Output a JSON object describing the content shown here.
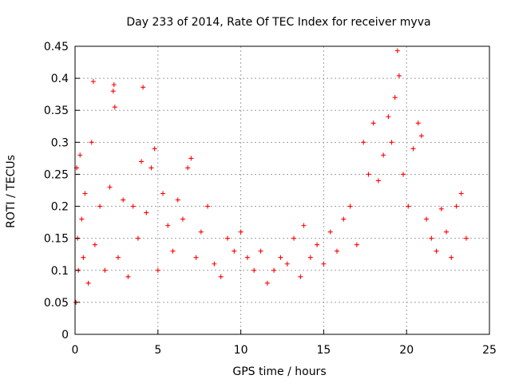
{
  "chart_data": {
    "type": "scatter",
    "title": "Day 233 of 2014, Rate Of TEC Index for receiver myva",
    "xlabel": "GPS time / hours",
    "ylabel": "ROTI / TECUs",
    "xlim": [
      0,
      25
    ],
    "ylim": [
      0,
      0.45
    ],
    "xticks": [
      "0",
      "5",
      "10",
      "15",
      "20",
      "25"
    ],
    "yticks": [
      "0",
      "0.05",
      "0.1",
      "0.15",
      "0.2",
      "0.25",
      "0.3",
      "0.35",
      "0.4",
      "0.45"
    ],
    "grid": true,
    "marker": "+",
    "color": "#ff0000",
    "series": [
      {
        "x": [
          0.05,
          0.1,
          0.15,
          0.2,
          0.3,
          0.4,
          0.5,
          0.6,
          0.8,
          1.0,
          1.1,
          1.2,
          1.5,
          1.8,
          2.1,
          2.3,
          2.35,
          2.4,
          2.6,
          2.9,
          3.2,
          3.5,
          3.8,
          4.0,
          4.1,
          4.3,
          4.6,
          4.8,
          5.0,
          5.3,
          5.6,
          5.9,
          6.2,
          6.5,
          6.8,
          7.0,
          7.3,
          7.6,
          8.0,
          8.4,
          8.8,
          9.2,
          9.6,
          10.0,
          10.4,
          10.8,
          11.2,
          11.6,
          12.0,
          12.4,
          12.8,
          13.2,
          13.6,
          13.8,
          14.2,
          14.6,
          15.0,
          15.4,
          15.8,
          16.2,
          16.6,
          17.0,
          17.4,
          17.7,
          18.0,
          18.3,
          18.6,
          18.9,
          19.1,
          19.3,
          19.45,
          19.55,
          19.8,
          20.1,
          20.4,
          20.7,
          20.9,
          21.2,
          21.5,
          21.8,
          22.1,
          22.4,
          22.7,
          23.0,
          23.3,
          23.6
        ],
        "y": [
          0.05,
          0.26,
          0.15,
          0.1,
          0.28,
          0.18,
          0.12,
          0.22,
          0.08,
          0.3,
          0.395,
          0.14,
          0.2,
          0.1,
          0.23,
          0.38,
          0.39,
          0.355,
          0.12,
          0.21,
          0.09,
          0.2,
          0.15,
          0.27,
          0.386,
          0.19,
          0.26,
          0.29,
          0.1,
          0.22,
          0.17,
          0.13,
          0.21,
          0.18,
          0.26,
          0.275,
          0.12,
          0.16,
          0.2,
          0.11,
          0.09,
          0.15,
          0.13,
          0.16,
          0.12,
          0.1,
          0.13,
          0.08,
          0.1,
          0.12,
          0.11,
          0.15,
          0.09,
          0.17,
          0.12,
          0.14,
          0.11,
          0.16,
          0.13,
          0.18,
          0.2,
          0.14,
          0.3,
          0.25,
          0.33,
          0.24,
          0.28,
          0.34,
          0.3,
          0.37,
          0.443,
          0.404,
          0.25,
          0.2,
          0.29,
          0.33,
          0.31,
          0.18,
          0.15,
          0.13,
          0.196,
          0.16,
          0.12,
          0.2,
          0.22,
          0.15
        ]
      }
    ]
  }
}
